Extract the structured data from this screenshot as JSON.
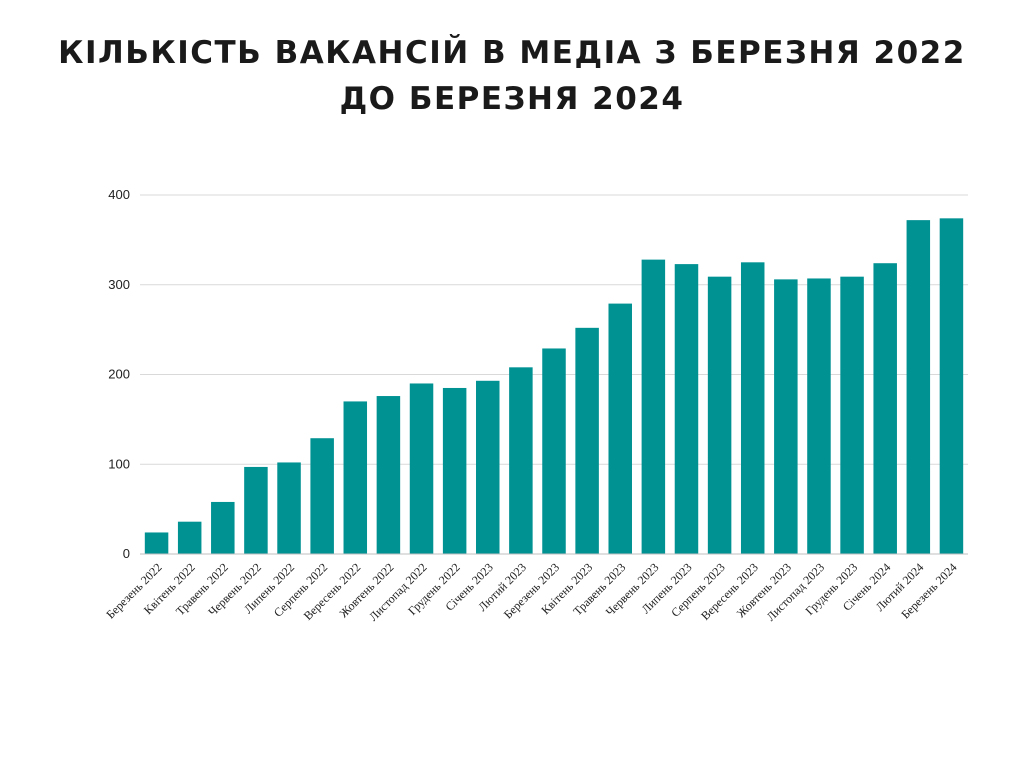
{
  "chart_data": {
    "type": "bar",
    "title_line1": "КІЛЬКІСТЬ ВАКАНСІЙ В МЕДІА З БЕРЕЗНЯ 2022",
    "title_line2": "ДО БЕРЕЗНЯ 2024",
    "xlabel": "",
    "ylabel": "",
    "ylim": [
      0,
      400
    ],
    "yticks": [
      0,
      100,
      200,
      300,
      400
    ],
    "grid": true,
    "bar_color": "#009193",
    "categories": [
      "Березень 2022",
      "Квітень 2022",
      "Травень 2022",
      "Червень 2022",
      "Липень 2022",
      "Серпень 2022",
      "Вересень 2022",
      "Жовтень 2022",
      "Листопад 2022",
      "Грудень 2022",
      "Січень 2023",
      "Лютий 2023",
      "Березень 2023",
      "Квітень 2023",
      "Травень 2023",
      "Червень 2023",
      "Липень 2023",
      "Серпень 2023",
      "Вересень 2023",
      "Жовтень 2023",
      "Листопад 2023",
      "Грудень 2023",
      "Січень 2024",
      "Лютий 2024",
      "Березень 2024"
    ],
    "values": [
      24,
      36,
      58,
      97,
      102,
      129,
      170,
      176,
      190,
      185,
      193,
      208,
      229,
      252,
      279,
      328,
      323,
      309,
      325,
      306,
      307,
      309,
      324,
      372,
      374
    ]
  }
}
